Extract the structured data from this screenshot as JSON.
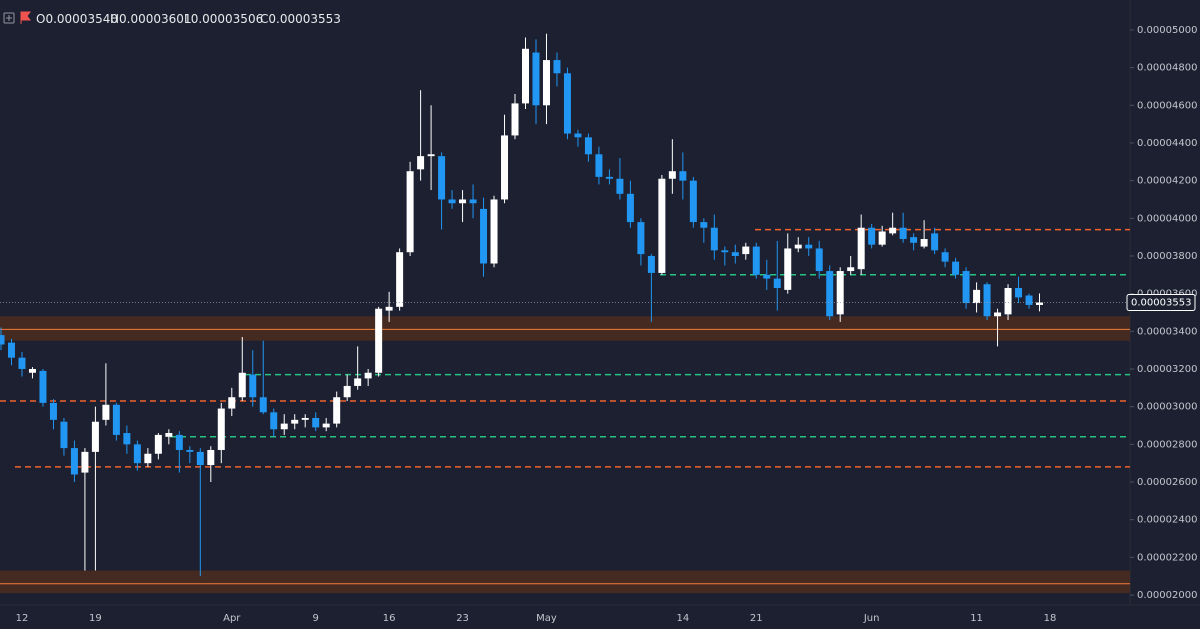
{
  "chart_data": {
    "type": "candlestick",
    "legend": [
      {
        "key": "O",
        "text": "0.00003540"
      },
      {
        "key": "H",
        "text": "0.00003601"
      },
      {
        "key": "L",
        "text": "0.00003506"
      },
      {
        "key": "C",
        "text": "0.00003553"
      }
    ],
    "up_color": "#ffffff",
    "down_color": "#2196f3",
    "ylim": [
      1.947e-05,
      5.159e-05
    ],
    "yticks": [
      {
        "value": 2e-05,
        "label": "0.00002000"
      },
      {
        "value": 2.2e-05,
        "label": "0.00002200"
      },
      {
        "value": 2.4e-05,
        "label": "0.00002400"
      },
      {
        "value": 2.6e-05,
        "label": "0.00002600"
      },
      {
        "value": 2.8e-05,
        "label": "0.00002800"
      },
      {
        "value": 3e-05,
        "label": "0.00003000"
      },
      {
        "value": 3.2e-05,
        "label": "0.00003200"
      },
      {
        "value": 3.4e-05,
        "label": "0.00003400"
      },
      {
        "value": 3.6e-05,
        "label": "0.00003600"
      },
      {
        "value": 3.8e-05,
        "label": "0.00003800"
      },
      {
        "value": 4e-05,
        "label": "0.00004000"
      },
      {
        "value": 4.2e-05,
        "label": "0.00004200"
      },
      {
        "value": 4.4e-05,
        "label": "0.00004400"
      },
      {
        "value": 4.6e-05,
        "label": "0.00004600"
      },
      {
        "value": 4.8e-05,
        "label": "0.00004800"
      },
      {
        "value": 5e-05,
        "label": "0.00005000"
      }
    ],
    "last_price": 3.553e-05,
    "last_price_label": "0.00003553",
    "levels": [
      {
        "value": 3.94e-05,
        "color": "#f0622e"
      },
      {
        "value": 3.7e-05,
        "color": "#26c281"
      },
      {
        "value": 3.17e-05,
        "color": "#26c281"
      },
      {
        "value": 3.03e-05,
        "color": "#f0622e"
      },
      {
        "value": 2.84e-05,
        "color": "#26c281"
      },
      {
        "value": 2.68e-05,
        "color": "#f0622e"
      }
    ],
    "zones": [
      {
        "high": 3.48e-05,
        "low": 3.35e-05,
        "line": 3.41e-05,
        "fill": "#4a2b20",
        "color": "#f57c3a"
      },
      {
        "high": 2.13e-05,
        "low": 2.01e-05,
        "line": 2.06e-05,
        "fill": "#4a2b20",
        "color": "#f57c3a"
      }
    ],
    "categories": [
      null,
      null,
      "12",
      null,
      null,
      null,
      null,
      null,
      null,
      "19",
      null,
      null,
      null,
      null,
      null,
      null,
      null,
      null,
      null,
      null,
      null,
      null,
      "Apr",
      null,
      null,
      null,
      null,
      null,
      null,
      null,
      "9",
      null,
      null,
      null,
      null,
      null,
      null,
      "16",
      null,
      null,
      null,
      null,
      null,
      null,
      "23",
      null,
      null,
      null,
      null,
      null,
      null,
      null,
      "May",
      null,
      null,
      null,
      null,
      null,
      null,
      null,
      null,
      null,
      null,
      null,
      null,
      "14",
      null,
      null,
      null,
      null,
      null,
      null,
      "21",
      null,
      null,
      null,
      null,
      null,
      null,
      null,
      null,
      null,
      null,
      "Jun",
      null,
      null,
      null,
      null,
      null,
      null,
      null,
      null,
      null,
      "11",
      null,
      null,
      null,
      null,
      null,
      null,
      "18"
    ],
    "open": [
      3.38e-05,
      3.34e-05,
      3.26e-05,
      3.18e-05,
      3.19e-05,
      3.02e-05,
      2.92e-05,
      2.78e-05,
      2.65e-05,
      2.76e-05,
      2.93e-05,
      3.01e-05,
      2.86e-05,
      2.8e-05,
      2.7e-05,
      2.75e-05,
      2.84e-05,
      2.85e-05,
      2.77e-05,
      2.76e-05,
      2.69e-05,
      2.77e-05,
      2.99e-05,
      3.05e-05,
      3.17e-05,
      3.05e-05,
      2.97e-05,
      2.88e-05,
      2.91e-05,
      2.93e-05,
      2.94e-05,
      2.89e-05,
      2.91e-05,
      3.05e-05,
      3.11e-05,
      3.15e-05,
      3.18e-05,
      3.51e-05,
      3.53e-05,
      3.82e-05,
      4.26e-05,
      4.33e-05,
      4.33e-05,
      4.1e-05,
      4.08e-05,
      4.1e-05,
      4.05e-05,
      3.76e-05,
      4.1e-05,
      4.44e-05,
      4.61e-05,
      4.88e-05,
      4.6e-05,
      4.84e-05,
      4.77e-05,
      4.45e-05,
      4.43e-05,
      4.34e-05,
      4.22e-05,
      4.21e-05,
      4.13e-05,
      3.98e-05,
      3.8e-05,
      3.71e-05,
      4.21e-05,
      4.25e-05,
      4.2e-05,
      3.98e-05,
      3.95e-05,
      3.83e-05,
      3.82e-05,
      3.81e-05,
      3.85e-05,
      3.7e-05,
      3.68e-05,
      3.62e-05,
      3.84e-05,
      3.86e-05,
      3.84e-05,
      3.72e-05,
      3.49e-05,
      3.72e-05,
      3.73e-05,
      3.95e-05,
      3.86e-05,
      3.92e-05,
      3.95e-05,
      3.9e-05,
      3.85e-05,
      3.92e-05,
      3.82e-05,
      3.77e-05,
      3.72e-05,
      3.55e-05,
      3.65e-05,
      3.48e-05,
      3.49e-05,
      3.63e-05,
      3.59e-05,
      3.54e-05,
      null
    ],
    "high": [
      3.42e-05,
      3.36e-05,
      3.29e-05,
      3.21e-05,
      3.2e-05,
      3.04e-05,
      2.94e-05,
      2.82e-05,
      2.78e-05,
      3e-05,
      3.23e-05,
      3.02e-05,
      2.9e-05,
      2.82e-05,
      2.78e-05,
      2.86e-05,
      2.88e-05,
      2.87e-05,
      2.79e-05,
      2.78e-05,
      2.79e-05,
      3.02e-05,
      3.1e-05,
      3.37e-05,
      3.3e-05,
      3.35e-05,
      2.99e-05,
      2.96e-05,
      2.96e-05,
      2.96e-05,
      2.97e-05,
      2.94e-05,
      3.08e-05,
      3.17e-05,
      3.32e-05,
      3.2e-05,
      3.53e-05,
      3.61e-05,
      3.84e-05,
      4.3e-05,
      4.68e-05,
      4.6e-05,
      4.35e-05,
      4.15e-05,
      4.15e-05,
      4.18e-05,
      4.11e-05,
      4.12e-05,
      4.55e-05,
      4.66e-05,
      4.96e-05,
      4.95e-05,
      4.98e-05,
      4.88e-05,
      4.8e-05,
      4.47e-05,
      4.45e-05,
      4.38e-05,
      4.26e-05,
      4.32e-05,
      4.2e-05,
      4e-05,
      3.81e-05,
      4.23e-05,
      4.42e-05,
      4.35e-05,
      4.22e-05,
      4e-05,
      4.02e-05,
      3.85e-05,
      3.86e-05,
      3.87e-05,
      3.87e-05,
      3.78e-05,
      3.88e-05,
      3.92e-05,
      3.9e-05,
      3.9e-05,
      3.88e-05,
      3.75e-05,
      3.74e-05,
      3.8e-05,
      4.02e-05,
      3.97e-05,
      3.96e-05,
      4.03e-05,
      4.03e-05,
      3.92e-05,
      3.99e-05,
      3.95e-05,
      3.84e-05,
      3.79e-05,
      3.74e-05,
      3.66e-05,
      3.66e-05,
      3.52e-05,
      3.65e-05,
      3.69e-05,
      3.6e-05,
      3.601e-05,
      null
    ],
    "low": [
      3.3e-05,
      3.22e-05,
      3.16e-05,
      3.15e-05,
      3e-05,
      2.88e-05,
      2.74e-05,
      2.6e-05,
      2.13e-05,
      2.13e-05,
      2.9e-05,
      2.82e-05,
      2.75e-05,
      2.66e-05,
      2.68e-05,
      2.72e-05,
      2.8e-05,
      2.65e-05,
      2.7e-05,
      2.1e-05,
      2.6e-05,
      2.7e-05,
      2.95e-05,
      3.03e-05,
      3e-05,
      2.96e-05,
      2.84e-05,
      2.85e-05,
      2.88e-05,
      2.89e-05,
      2.87e-05,
      2.87e-05,
      2.89e-05,
      3.03e-05,
      3.09e-05,
      3.11e-05,
      3.16e-05,
      3.45e-05,
      3.51e-05,
      3.8e-05,
      4.2e-05,
      4.15e-05,
      3.94e-05,
      4.05e-05,
      3.98e-05,
      4e-05,
      3.69e-05,
      3.74e-05,
      4.08e-05,
      4.42e-05,
      4.58e-05,
      4.5e-05,
      4.5e-05,
      4.7e-05,
      4.42e-05,
      4.38e-05,
      4.3e-05,
      4.18e-05,
      4.18e-05,
      4.1e-05,
      3.95e-05,
      3.75e-05,
      3.45e-05,
      3.7e-05,
      4.13e-05,
      4.1e-05,
      3.95e-05,
      3.87e-05,
      3.78e-05,
      3.75e-05,
      3.76e-05,
      3.78e-05,
      3.68e-05,
      3.62e-05,
      3.51e-05,
      3.6e-05,
      3.82e-05,
      3.8e-05,
      3.68e-05,
      3.46e-05,
      3.45e-05,
      3.7e-05,
      3.7e-05,
      3.84e-05,
      3.85e-05,
      3.91e-05,
      3.87e-05,
      3.83e-05,
      3.84e-05,
      3.81e-05,
      3.74e-05,
      3.68e-05,
      3.52e-05,
      3.5e-05,
      3.46e-05,
      3.32e-05,
      3.46e-05,
      3.55e-05,
      3.52e-05,
      3.506e-05,
      null
    ],
    "close": [
      3.33e-05,
      3.26e-05,
      3.2e-05,
      3.2e-05,
      3.02e-05,
      2.93e-05,
      2.78e-05,
      2.64e-05,
      2.76e-05,
      2.92e-05,
      3.01e-05,
      2.85e-05,
      2.8e-05,
      2.7e-05,
      2.75e-05,
      2.85e-05,
      2.86e-05,
      2.77e-05,
      2.76e-05,
      2.69e-05,
      2.77e-05,
      2.99e-05,
      3.05e-05,
      3.18e-05,
      3.05e-05,
      2.97e-05,
      2.88e-05,
      2.91e-05,
      2.93e-05,
      2.94e-05,
      2.89e-05,
      2.91e-05,
      3.05e-05,
      3.11e-05,
      3.15e-05,
      3.18e-05,
      3.52e-05,
      3.53e-05,
      3.82e-05,
      4.25e-05,
      4.33e-05,
      4.34e-05,
      4.1e-05,
      4.08e-05,
      4.1e-05,
      4.08e-05,
      3.76e-05,
      4.1e-05,
      4.44e-05,
      4.61e-05,
      4.9e-05,
      4.6e-05,
      4.84e-05,
      4.77e-05,
      4.45e-05,
      4.43e-05,
      4.34e-05,
      4.22e-05,
      4.21e-05,
      4.13e-05,
      3.98e-05,
      3.81e-05,
      3.71e-05,
      4.21e-05,
      4.25e-05,
      4.2e-05,
      3.98e-05,
      3.95e-05,
      3.83e-05,
      3.82e-05,
      3.8e-05,
      3.85e-05,
      3.7e-05,
      3.68e-05,
      3.63e-05,
      3.84e-05,
      3.86e-05,
      3.84e-05,
      3.72e-05,
      3.48e-05,
      3.72e-05,
      3.74e-05,
      3.95e-05,
      3.86e-05,
      3.93e-05,
      3.95e-05,
      3.89e-05,
      3.87e-05,
      3.89e-05,
      3.83e-05,
      3.77e-05,
      3.7e-05,
      3.55e-05,
      3.62e-05,
      3.48e-05,
      3.5e-05,
      3.63e-05,
      3.58e-05,
      3.54e-05,
      3.553e-05,
      null
    ]
  }
}
